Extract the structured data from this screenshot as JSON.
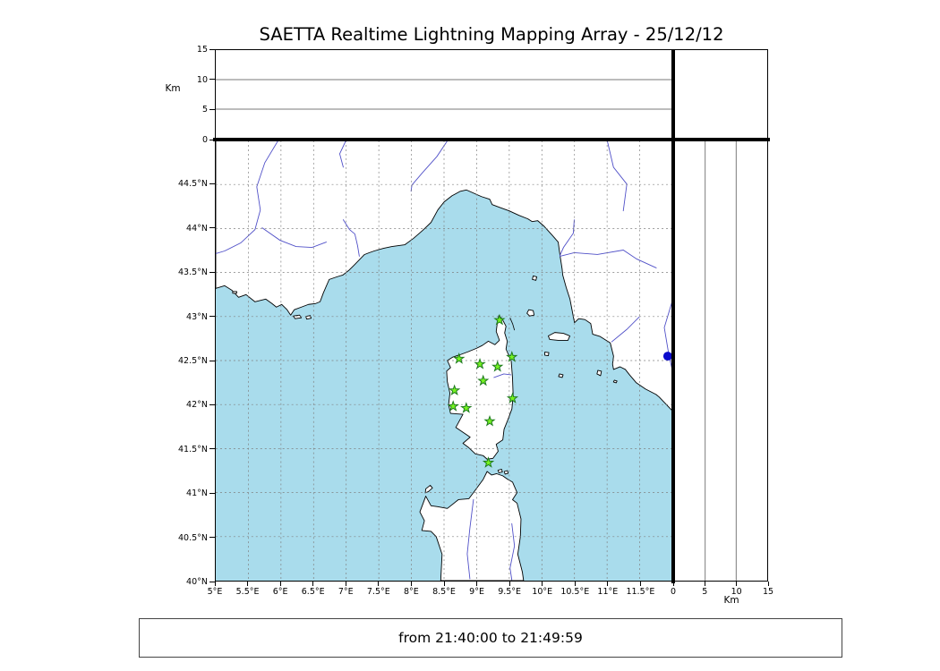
{
  "title": "SAETTA Realtime Lightning Mapping Array - 25/12/12",
  "time_range_text": "from 21:40:00 to 21:49:59",
  "altitude_axis": {
    "label": "Km",
    "ticks": [
      0,
      5,
      10,
      15
    ],
    "max_km": 15
  },
  "map": {
    "lon_min": 5,
    "lon_max": 12,
    "lat_min": 40,
    "lat_max": 45,
    "grid_step_deg": 0.5,
    "lon_tick_labels": [
      "5°E",
      "5.5°E",
      "6°E",
      "6.5°E",
      "7°E",
      "7.5°E",
      "8°E",
      "8.5°E",
      "9°E",
      "9.5°E",
      "10°E",
      "10.5°E",
      "11°E",
      "11.5°E"
    ],
    "lat_tick_labels": [
      "40°N",
      "40.5°N",
      "41°N",
      "41.5°N",
      "42°N",
      "42.5°N",
      "43°N",
      "43.5°N",
      "44°N",
      "44.5°N"
    ]
  },
  "chart_data": {
    "type": "scatter",
    "title": "SAETTA Realtime Lightning Mapping Array - 25/12/12",
    "x_range": [
      5,
      12
    ],
    "y_range": [
      40,
      45
    ],
    "altitude_axis_label": "Km",
    "altitude_ticks": [
      0,
      5,
      10,
      15
    ],
    "series": [
      {
        "name": "lma-stations",
        "marker": "star",
        "color": "#76f321",
        "points": [
          [
            9.35,
            42.96
          ],
          [
            8.73,
            42.52
          ],
          [
            9.05,
            42.46
          ],
          [
            9.32,
            42.43
          ],
          [
            9.54,
            42.54
          ],
          [
            9.1,
            42.27
          ],
          [
            8.66,
            42.16
          ],
          [
            9.55,
            42.07
          ],
          [
            8.64,
            41.98
          ],
          [
            8.84,
            41.96
          ],
          [
            9.2,
            41.81
          ],
          [
            9.18,
            41.34
          ]
        ]
      },
      {
        "name": "lightning-source",
        "marker": "circle",
        "color": "#0a0acc",
        "points": [
          [
            11.93,
            42.55
          ]
        ]
      }
    ]
  },
  "colors": {
    "sea": "#a9dcec",
    "land": "#ffffff",
    "coastline": "#000000",
    "river": "#5050c8",
    "grid": "#7f7f7f",
    "station_fill": "#76f321",
    "station_stroke": "#1e7a1e",
    "source_fill": "#0a0acc"
  }
}
